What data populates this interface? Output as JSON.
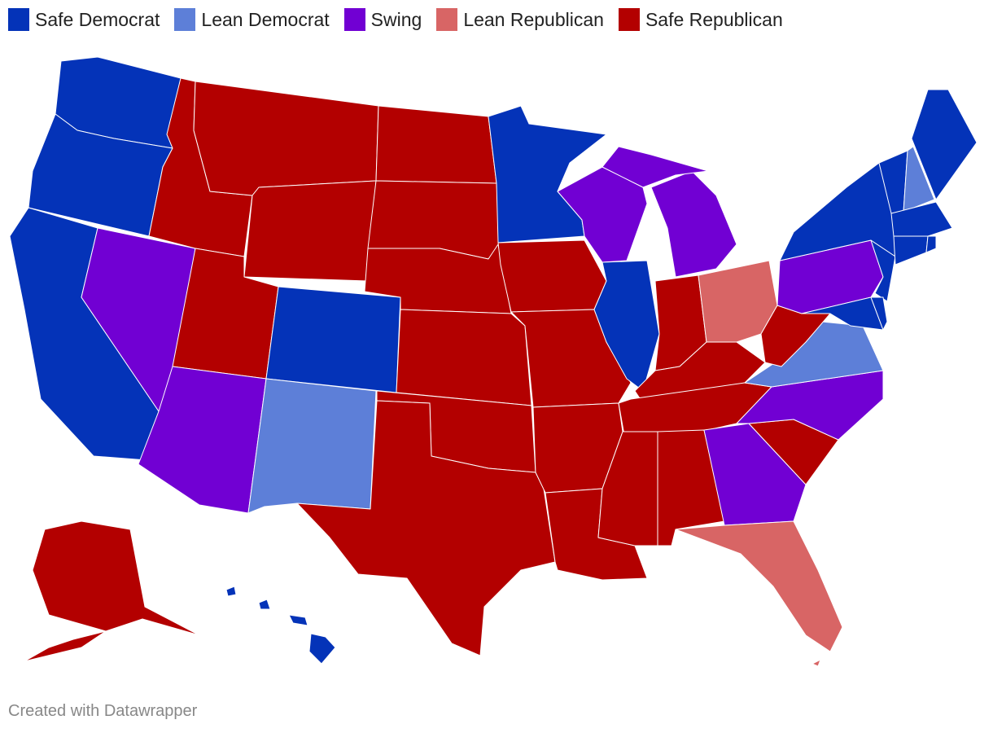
{
  "legend": [
    {
      "label": "Safe Democrat",
      "color": "#0433b8"
    },
    {
      "label": "Lean Democrat",
      "color": "#5d7fd8"
    },
    {
      "label": "Swing",
      "color": "#7100d3"
    },
    {
      "label": "Lean Republican",
      "color": "#d86565"
    },
    {
      "label": "Safe Republican",
      "color": "#b30000"
    }
  ],
  "footer": "Created with Datawrapper"
}
